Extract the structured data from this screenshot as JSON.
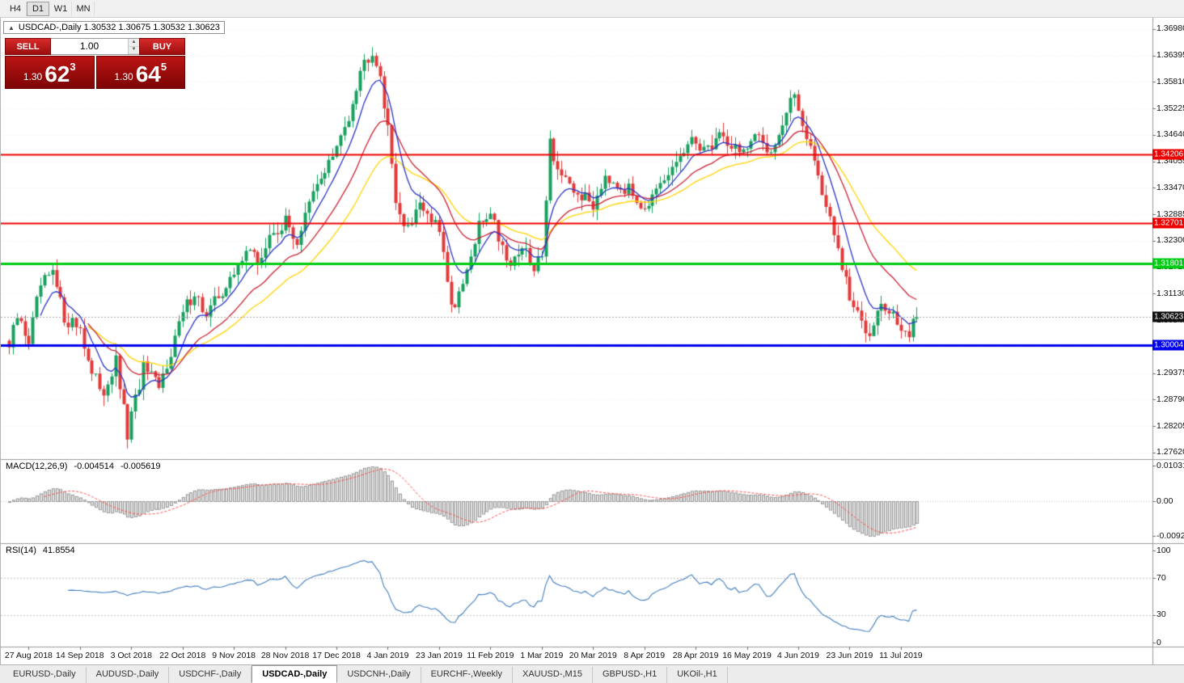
{
  "toolbar": {
    "timeframes": [
      "H4",
      "D1",
      "W1",
      "MN"
    ],
    "active_timeframe": "D1"
  },
  "chart": {
    "symbol_ohlc": "USDCAD-,Daily 1.30532 1.30675 1.30532 1.30623",
    "collapse_arrow": "▲"
  },
  "trade_panel": {
    "sell_label": "SELL",
    "buy_label": "BUY",
    "volume": "1.00",
    "sell_price": {
      "prefix": "1.30",
      "big": "62",
      "sup": "3"
    },
    "buy_price": {
      "prefix": "1.30",
      "big": "64",
      "sup": "5"
    }
  },
  "levels": [
    {
      "value": 1.34206,
      "label": "1.34206",
      "color": "#ee0000",
      "width": 2
    },
    {
      "value": 1.32701,
      "label": "1.32701",
      "color": "#ee0000",
      "width": 2
    },
    {
      "value": 1.31801,
      "label": "1.31801",
      "color": "#00cc14",
      "width": 3
    },
    {
      "value": 1.30004,
      "label": "1.30004",
      "color": "#0000ee",
      "width": 3
    }
  ],
  "current_price": {
    "value": 1.30623,
    "label": "1.30623",
    "color": "#111111"
  },
  "indicators": {
    "macd": {
      "title": "MACD(12,26,9)",
      "value_main": "-0.004514",
      "value_signal": "-0.005619",
      "axis": [
        "0.010311",
        "0.00",
        "-0.009203"
      ]
    },
    "rsi": {
      "title": "RSI(14)",
      "value": "41.8554",
      "axis": [
        "100",
        "70",
        "30",
        "0"
      ],
      "guide_levels": [
        70,
        30
      ]
    }
  },
  "tabs": [
    {
      "label": "EURUSD-,Daily",
      "active": false
    },
    {
      "label": "AUDUSD-,Daily",
      "active": false
    },
    {
      "label": "USDCHF-,Daily",
      "active": false
    },
    {
      "label": "USDCAD-,Daily",
      "active": true
    },
    {
      "label": "USDCNH-,Daily",
      "active": false
    },
    {
      "label": "EURCHF-,Weekly",
      "active": false
    },
    {
      "label": "XAUUSD-,M15",
      "active": false
    },
    {
      "label": "GBPUSD-,H1",
      "active": false
    },
    {
      "label": "UKOil-,H1",
      "active": false
    }
  ],
  "chart_data": {
    "type": "candlestick",
    "symbol": "USDCAD",
    "period": "Daily",
    "ohlc_display": {
      "open": "1.30532",
      "high": "1.30675",
      "low": "1.30532",
      "close": "1.30623"
    },
    "last_close": 1.30623,
    "count": 231,
    "bar_spacing": 4.88,
    "ylim": [
      1.27477,
      1.3723
    ],
    "y_ticks": [
      "1.36980",
      "1.36395",
      "1.35810",
      "1.35225",
      "1.34640",
      "1.34055",
      "1.33470",
      "1.32885",
      "1.32300",
      "1.31715",
      "1.31130",
      "1.30545",
      "1.29960",
      "1.29375",
      "1.28790",
      "1.28205",
      "1.27620"
    ],
    "x_labels": [
      "27 Aug 2018",
      "14 Sep 2018",
      "3 Oct 2018",
      "22 Oct 2018",
      "9 Nov 2018",
      "28 Nov 2018",
      "17 Dec 2018",
      "4 Jan 2019",
      "23 Jan 2019",
      "11 Feb 2019",
      "1 Mar 2019",
      "20 Mar 2019",
      "8 Apr 2019",
      "28 Apr 2019",
      "16 May 2019",
      "4 Jun 2019",
      "23 Jun 2019",
      "11 Jul 2019"
    ],
    "x_label_indices": [
      5,
      18,
      31,
      44,
      57,
      70,
      83,
      96,
      109,
      122,
      135,
      148,
      161,
      174,
      187,
      200,
      213,
      226
    ],
    "waypoints": [
      [
        0,
        1.2995
      ],
      [
        2,
        1.306
      ],
      [
        5,
        1.301
      ],
      [
        8,
        1.313
      ],
      [
        11,
        1.3155
      ],
      [
        14,
        1.306
      ],
      [
        18,
        1.304
      ],
      [
        21,
        1.293
      ],
      [
        24,
        1.29
      ],
      [
        27,
        1.296
      ],
      [
        30,
        1.28
      ],
      [
        31,
        1.284
      ],
      [
        34,
        1.295
      ],
      [
        38,
        1.29
      ],
      [
        41,
        1.299
      ],
      [
        44,
        1.307
      ],
      [
        47,
        1.312
      ],
      [
        50,
        1.306
      ],
      [
        53,
        1.311
      ],
      [
        57,
        1.315
      ],
      [
        60,
        1.322
      ],
      [
        63,
        1.318
      ],
      [
        67,
        1.325
      ],
      [
        70,
        1.327
      ],
      [
        73,
        1.323
      ],
      [
        76,
        1.331
      ],
      [
        80,
        1.339
      ],
      [
        83,
        1.343
      ],
      [
        86,
        1.351
      ],
      [
        89,
        1.361
      ],
      [
        92,
        1.3655
      ],
      [
        94,
        1.36
      ],
      [
        96,
        1.347
      ],
      [
        98,
        1.333
      ],
      [
        100,
        1.325
      ],
      [
        102,
        1.328
      ],
      [
        104,
        1.332
      ],
      [
        106,
        1.329
      ],
      [
        109,
        1.325
      ],
      [
        111,
        1.313
      ],
      [
        113,
        1.308
      ],
      [
        115,
        1.313
      ],
      [
        117,
        1.319
      ],
      [
        119,
        1.326
      ],
      [
        122,
        1.33
      ],
      [
        124,
        1.324
      ],
      [
        127,
        1.318
      ],
      [
        130,
        1.322
      ],
      [
        133,
        1.316
      ],
      [
        135,
        1.321
      ],
      [
        137,
        1.345
      ],
      [
        139,
        1.339
      ],
      [
        142,
        1.334
      ],
      [
        145,
        1.333
      ],
      [
        148,
        1.331
      ],
      [
        151,
        1.338
      ],
      [
        154,
        1.336
      ],
      [
        157,
        1.334
      ],
      [
        161,
        1.331
      ],
      [
        164,
        1.333
      ],
      [
        167,
        1.337
      ],
      [
        170,
        1.342
      ],
      [
        174,
        1.345
      ],
      [
        177,
        1.343
      ],
      [
        180,
        1.347
      ],
      [
        183,
        1.344
      ],
      [
        187,
        1.343
      ],
      [
        190,
        1.346
      ],
      [
        193,
        1.343
      ],
      [
        196,
        1.349
      ],
      [
        198,
        1.353
      ],
      [
        199,
        1.356
      ],
      [
        200,
        1.352
      ],
      [
        203,
        1.344
      ],
      [
        206,
        1.334
      ],
      [
        209,
        1.324
      ],
      [
        211,
        1.317
      ],
      [
        213,
        1.31
      ],
      [
        216,
        1.305
      ],
      [
        218,
        1.303
      ],
      [
        220,
        1.309
      ],
      [
        223,
        1.307
      ],
      [
        226,
        1.304
      ],
      [
        228,
        1.302
      ],
      [
        230,
        1.3062
      ]
    ],
    "moving_averages": [
      {
        "period": 34,
        "color": "#ffd400"
      },
      {
        "period": 20,
        "color": "#cc2233"
      },
      {
        "period": 8,
        "color": "#2a35c8"
      }
    ],
    "colors": {
      "up": "#18a05f",
      "down": "#e23a3a",
      "macd_hist": "#e2e2e2",
      "macd_hist_border": "#9a9a9a",
      "macd_signal": "#ff5050",
      "rsi_line": "#3f7cbf",
      "grid": "#ededed",
      "separator": "#9a9a9a"
    }
  }
}
